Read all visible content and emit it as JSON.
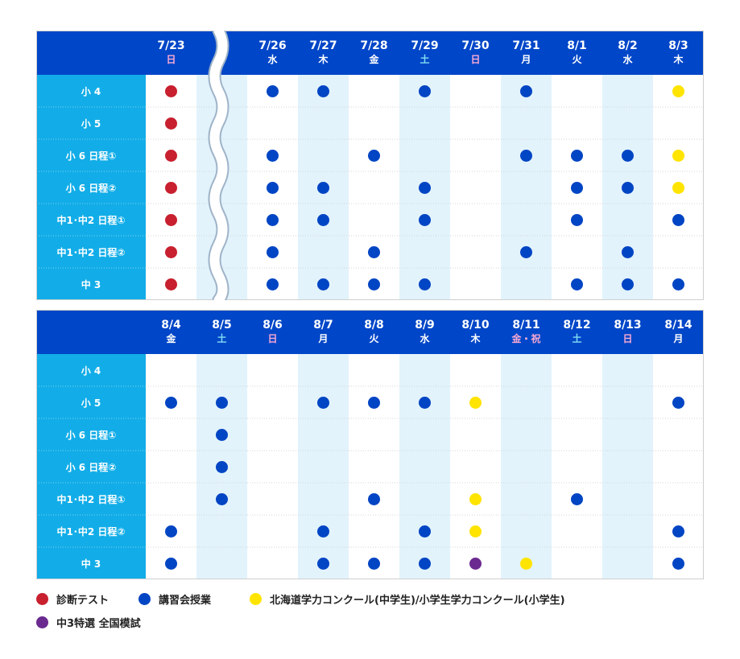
{
  "colors": {
    "header_bg": "#0046c8",
    "row_label_bg": "#12ade8",
    "shade": "#e2f3fc",
    "line": "#d6d6d6",
    "sun": "#f8a9d4",
    "sat": "#7fdcf2",
    "holiday": "#f8a9d4",
    "status": {
      "r": "#c8202f",
      "b": "#0045c4",
      "y": "#ffe400",
      "p": "#6b2a90"
    }
  },
  "legend": [
    {
      "key": "r",
      "label": "診断テスト"
    },
    {
      "key": "b",
      "label": "講習会授業"
    },
    {
      "key": "y",
      "label": "北海道学力コンクール(中学生)/小学生学力コンクール(小学生)"
    },
    {
      "key": "p",
      "label": "中3特選 全国模試"
    }
  ],
  "tables": [
    {
      "rows": [
        "小 4",
        "小 5",
        "小 6 日程①",
        "小 6 日程②",
        "中1･中2 日程①",
        "中1･中2 日程②",
        "中 3"
      ],
      "columns": [
        {
          "date": "7/23",
          "wd": "日",
          "wtype": "sun"
        },
        {
          "date": "",
          "wd": "",
          "wtype": "break"
        },
        {
          "date": "7/26",
          "wd": "水",
          "wtype": "wk"
        },
        {
          "date": "7/27",
          "wd": "木",
          "wtype": "wk"
        },
        {
          "date": "7/28",
          "wd": "金",
          "wtype": "wk"
        },
        {
          "date": "7/29",
          "wd": "土",
          "wtype": "sat"
        },
        {
          "date": "7/30",
          "wd": "日",
          "wtype": "sun"
        },
        {
          "date": "7/31",
          "wd": "月",
          "wtype": "wk"
        },
        {
          "date": "8/1",
          "wd": "火",
          "wtype": "wk"
        },
        {
          "date": "8/2",
          "wd": "水",
          "wtype": "wk"
        },
        {
          "date": "8/3",
          "wd": "木",
          "wtype": "wk"
        }
      ],
      "cells": [
        [
          "r",
          "",
          "b",
          "b",
          "",
          "b",
          "",
          "b",
          "",
          "",
          "y"
        ],
        [
          "r",
          "",
          "",
          "",
          "",
          "",
          "",
          "",
          "",
          "",
          ""
        ],
        [
          "r",
          "",
          "b",
          "",
          "b",
          "",
          "",
          "b",
          "b",
          "b",
          "y"
        ],
        [
          "r",
          "",
          "b",
          "b",
          "",
          "b",
          "",
          "",
          "b",
          "b",
          "y"
        ],
        [
          "r",
          "",
          "b",
          "b",
          "",
          "b",
          "",
          "",
          "b",
          "",
          "b"
        ],
        [
          "r",
          "",
          "b",
          "",
          "b",
          "",
          "",
          "b",
          "",
          "b",
          ""
        ],
        [
          "r",
          "",
          "b",
          "b",
          "b",
          "b",
          "",
          "",
          "b",
          "b",
          "b"
        ]
      ]
    },
    {
      "rows": [
        "小 4",
        "小 5",
        "小 6 日程①",
        "小 6 日程②",
        "中1･中2 日程①",
        "中1･中2 日程②",
        "中 3"
      ],
      "columns": [
        {
          "date": "8/4",
          "wd": "金",
          "wtype": "wk"
        },
        {
          "date": "8/5",
          "wd": "土",
          "wtype": "sat"
        },
        {
          "date": "8/6",
          "wd": "日",
          "wtype": "sun"
        },
        {
          "date": "8/7",
          "wd": "月",
          "wtype": "wk"
        },
        {
          "date": "8/8",
          "wd": "火",
          "wtype": "wk"
        },
        {
          "date": "8/9",
          "wd": "水",
          "wtype": "wk"
        },
        {
          "date": "8/10",
          "wd": "木",
          "wtype": "wk"
        },
        {
          "date": "8/11",
          "wd": "金・祝",
          "wtype": "hol"
        },
        {
          "date": "8/12",
          "wd": "土",
          "wtype": "sat"
        },
        {
          "date": "8/13",
          "wd": "日",
          "wtype": "sun"
        },
        {
          "date": "8/14",
          "wd": "月",
          "wtype": "wk"
        }
      ],
      "cells": [
        [
          "",
          "",
          "",
          "",
          "",
          "",
          "",
          "",
          "",
          "",
          ""
        ],
        [
          "b",
          "b",
          "",
          "b",
          "b",
          "b",
          "y",
          "",
          "",
          "",
          "b"
        ],
        [
          "",
          "b",
          "",
          "",
          "",
          "",
          "",
          "",
          "",
          "",
          ""
        ],
        [
          "",
          "b",
          "",
          "",
          "",
          "",
          "",
          "",
          "",
          "",
          ""
        ],
        [
          "",
          "b",
          "",
          "",
          "b",
          "",
          "y",
          "",
          "b",
          "",
          ""
        ],
        [
          "b",
          "",
          "",
          "b",
          "",
          "b",
          "y",
          "",
          "",
          "",
          "b"
        ],
        [
          "b",
          "",
          "",
          "b",
          "b",
          "b",
          "p",
          "y",
          "",
          "",
          "b"
        ]
      ]
    }
  ]
}
